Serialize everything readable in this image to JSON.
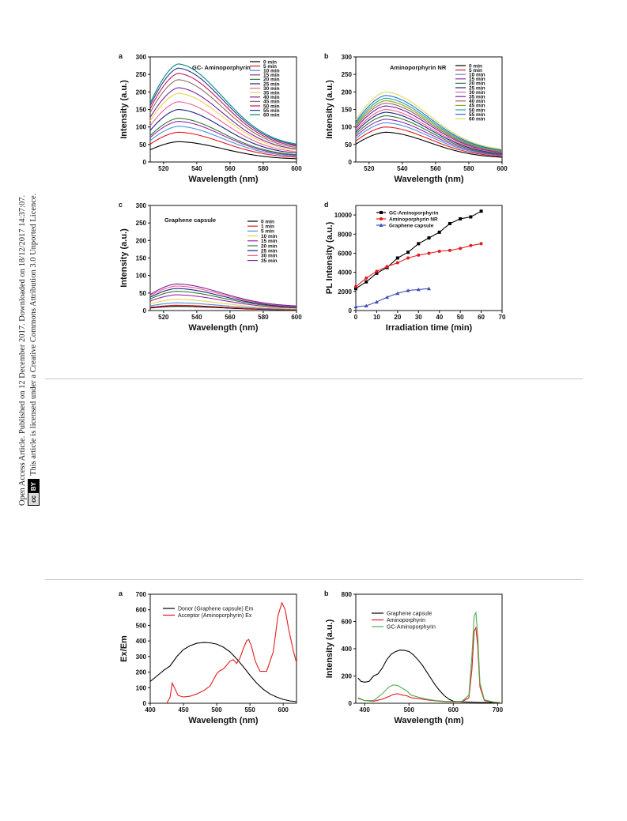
{
  "sidebar": {
    "line1": "Open Access Article. Published on 12 December 2017. Downloaded on 18/12/2017 14:37:07.",
    "line2": "This article is licensed under a Creative Commons Attribution 3.0 Unported Licence.",
    "badge_cc": "cc",
    "badge_by": "BY"
  },
  "chart_data": [
    {
      "panel": "a",
      "type": "line",
      "title": "GC- Aminoporphyrin",
      "xlabel": "Wavelength (nm)",
      "ylabel": "Intensity (a.u.)",
      "xlim": [
        512,
        600
      ],
      "ylim": [
        0,
        300
      ],
      "xticks": [
        520,
        540,
        560,
        580,
        600
      ],
      "yticks": [
        0,
        50,
        100,
        150,
        200,
        250,
        300
      ],
      "legend_position": "top-right",
      "peak_x": 529,
      "series": [
        {
          "name": "0 min",
          "peak": 58,
          "color": "#000000"
        },
        {
          "name": "5 min",
          "peak": 85,
          "color": "#e41a1c"
        },
        {
          "name": "10 min",
          "peak": 102,
          "color": "#4a90d9"
        },
        {
          "name": "15 min",
          "peak": 116,
          "color": "#9c27b0"
        },
        {
          "name": "20 min",
          "peak": 125,
          "color": "#2e7d32"
        },
        {
          "name": "25 min",
          "peak": 150,
          "color": "#1a237e"
        },
        {
          "name": "30 min",
          "peak": 172,
          "color": "#f06292"
        },
        {
          "name": "35 min",
          "peak": 196,
          "color": "#e8d44d"
        },
        {
          "name": "40 min",
          "peak": 212,
          "color": "#7b1fa2"
        },
        {
          "name": "45 min",
          "peak": 235,
          "color": "#8d6e63"
        },
        {
          "name": "50 min",
          "peak": 253,
          "color": "#c2185b"
        },
        {
          "name": "55 min",
          "peak": 268,
          "color": "#283593"
        },
        {
          "name": "60 min",
          "peak": 280,
          "color": "#00897b"
        }
      ]
    },
    {
      "panel": "b",
      "type": "line",
      "title": "Aminoporphyrin NR",
      "xlabel": "Wavelength (nm)",
      "ylabel": "Intensity (a.u.)",
      "xlim": [
        512,
        600
      ],
      "ylim": [
        0,
        300
      ],
      "xticks": [
        520,
        540,
        560,
        580,
        600
      ],
      "yticks": [
        0,
        50,
        100,
        150,
        200,
        250,
        300
      ],
      "legend_position": "top-right",
      "peak_x": 530,
      "series": [
        {
          "name": "0 min",
          "peak": 85,
          "color": "#000000"
        },
        {
          "name": "5 min",
          "peak": 100,
          "color": "#e41a1c"
        },
        {
          "name": "10 min",
          "peak": 112,
          "color": "#4a90d9"
        },
        {
          "name": "15 min",
          "peak": 122,
          "color": "#9c27b0"
        },
        {
          "name": "20 min",
          "peak": 132,
          "color": "#2e7d32"
        },
        {
          "name": "25 min",
          "peak": 142,
          "color": "#1a237e"
        },
        {
          "name": "30 min",
          "peak": 150,
          "color": "#f06292"
        },
        {
          "name": "35 min",
          "peak": 160,
          "color": "#7b1fa2"
        },
        {
          "name": "40 min",
          "peak": 168,
          "color": "#8d6e63"
        },
        {
          "name": "45 min",
          "peak": 175,
          "color": "#9e9d24"
        },
        {
          "name": "50 min",
          "peak": 182,
          "color": "#26a69a"
        },
        {
          "name": "55 min",
          "peak": 190,
          "color": "#1976d2"
        },
        {
          "name": "60 min",
          "peak": 200,
          "color": "#e8d44d"
        }
      ]
    },
    {
      "panel": "c",
      "type": "line",
      "title": "Graphene capsule",
      "xlabel": "Wavelength (nm)",
      "ylabel": "Intensity (a.u.)",
      "xlim": [
        512,
        600
      ],
      "ylim": [
        0,
        300
      ],
      "xticks": [
        520,
        540,
        560,
        580,
        600
      ],
      "yticks": [
        0,
        50,
        100,
        150,
        200,
        250,
        300
      ],
      "legend_position": "top-right",
      "peak_x": 528,
      "series": [
        {
          "name": "0 min",
          "peak": 12,
          "color": "#000000"
        },
        {
          "name": "1 min",
          "peak": 15,
          "color": "#e41a1c"
        },
        {
          "name": "5 min",
          "peak": 22,
          "color": "#4a90d9"
        },
        {
          "name": "10 min",
          "peak": 32,
          "color": "#e8d44d"
        },
        {
          "name": "15 min",
          "peak": 45,
          "color": "#9c27b0"
        },
        {
          "name": "20 min",
          "peak": 55,
          "color": "#2e7d32"
        },
        {
          "name": "25 min",
          "peak": 63,
          "color": "#1a237e"
        },
        {
          "name": "30 min",
          "peak": 70,
          "color": "#f06292"
        },
        {
          "name": "35 min",
          "peak": 76,
          "color": "#7b1fa2"
        }
      ]
    },
    {
      "panel": "d",
      "type": "line",
      "xlabel": "Irradiation time (min)",
      "ylabel": "PL Intensity (a.u.)",
      "xlim": [
        0,
        70
      ],
      "ylim": [
        0,
        11000
      ],
      "xticks": [
        0,
        10,
        20,
        30,
        40,
        50,
        60,
        70
      ],
      "yticks": [
        0,
        2000,
        4000,
        6000,
        8000,
        10000
      ],
      "legend_position": "top-left",
      "series": [
        {
          "name": "GC-Aminoporphyrin",
          "color": "#000000",
          "marker": "square",
          "x": [
            0,
            5,
            10,
            15,
            20,
            25,
            30,
            35,
            40,
            45,
            50,
            55,
            60
          ],
          "y": [
            2300,
            3000,
            3900,
            4500,
            5500,
            6100,
            7000,
            7600,
            8200,
            9100,
            9600,
            9800,
            10400
          ]
        },
        {
          "name": "Aminoporphyrin NR",
          "color": "#e41a1c",
          "marker": "circle",
          "x": [
            0,
            5,
            10,
            15,
            20,
            25,
            30,
            35,
            40,
            45,
            50,
            55,
            60
          ],
          "y": [
            2500,
            3400,
            4100,
            4600,
            5000,
            5500,
            5800,
            6000,
            6200,
            6300,
            6500,
            6800,
            7000
          ]
        },
        {
          "name": "Graphene capsule",
          "color": "#3f51b5",
          "marker": "triangle",
          "x": [
            0,
            5,
            10,
            15,
            20,
            25,
            30,
            35
          ],
          "y": [
            400,
            500,
            900,
            1400,
            1800,
            2100,
            2200,
            2300
          ]
        }
      ]
    },
    {
      "panel": "a",
      "type": "line",
      "xlabel": "Wavelength (nm)",
      "ylabel": "Ex/Em",
      "xlim": [
        400,
        620
      ],
      "ylim": [
        0,
        700
      ],
      "xticks": [
        400,
        450,
        500,
        550,
        600
      ],
      "yticks": [
        0,
        100,
        200,
        300,
        400,
        500,
        600,
        700
      ],
      "legend_position": "top-left",
      "series": [
        {
          "name": "Donor (Graphene capsule) Em",
          "color": "#000000",
          "x": [
            400,
            410,
            420,
            430,
            440,
            450,
            460,
            470,
            480,
            490,
            500,
            510,
            520,
            530,
            540,
            550,
            560,
            570,
            580,
            590,
            600,
            610,
            620
          ],
          "y": [
            140,
            175,
            210,
            240,
            300,
            345,
            370,
            385,
            390,
            388,
            380,
            360,
            330,
            285,
            235,
            180,
            130,
            90,
            60,
            40,
            25,
            15,
            10
          ]
        },
        {
          "name": "Acceptor (Aminoporphyrin) Ex",
          "color": "#e41a1c",
          "x": [
            425,
            430,
            433,
            437,
            442,
            450,
            460,
            470,
            480,
            490,
            500,
            505,
            510,
            520,
            525,
            530,
            535,
            540,
            545,
            548,
            552,
            558,
            565,
            575,
            585,
            592,
            598,
            603,
            608,
            615,
            620
          ],
          "y": [
            0,
            40,
            130,
            95,
            50,
            40,
            45,
            60,
            80,
            110,
            190,
            210,
            220,
            270,
            280,
            255,
            290,
            350,
            400,
            410,
            370,
            270,
            205,
            205,
            330,
            560,
            645,
            600,
            480,
            340,
            260
          ]
        }
      ]
    },
    {
      "panel": "b",
      "type": "line",
      "xlabel": "Wavelength (nm)",
      "ylabel": "Intensity (a.u.)",
      "xlim": [
        380,
        710
      ],
      "ylim": [
        0,
        800
      ],
      "xticks": [
        400,
        500,
        600,
        700
      ],
      "yticks": [
        0,
        200,
        400,
        600,
        800
      ],
      "legend_position": "top-left",
      "series": [
        {
          "name": "Graphene capsule",
          "color": "#000000",
          "x": [
            385,
            392,
            400,
            410,
            420,
            430,
            440,
            450,
            460,
            470,
            480,
            490,
            500,
            510,
            520,
            530,
            540,
            550,
            560,
            570,
            580,
            590,
            600,
            620,
            640,
            660,
            680,
            700
          ],
          "y": [
            185,
            160,
            155,
            160,
            200,
            215,
            260,
            320,
            360,
            380,
            390,
            388,
            380,
            355,
            320,
            280,
            230,
            180,
            130,
            90,
            55,
            30,
            15,
            10,
            8,
            6,
            5,
            5
          ]
        },
        {
          "name": "Aminoporphyrin",
          "color": "#e41a1c",
          "x": [
            385,
            400,
            420,
            440,
            455,
            465,
            475,
            485,
            495,
            505,
            520,
            540,
            560,
            580,
            600,
            620,
            635,
            642,
            647,
            651,
            655,
            660,
            670,
            690,
            705
          ],
          "y": [
            40,
            20,
            15,
            30,
            50,
            65,
            70,
            60,
            55,
            40,
            35,
            25,
            18,
            12,
            10,
            12,
            40,
            250,
            530,
            555,
            420,
            120,
            20,
            8,
            5
          ]
        },
        {
          "name": "GC-Aminoporphyrin",
          "color": "#4caf50",
          "x": [
            385,
            400,
            420,
            440,
            455,
            465,
            475,
            485,
            495,
            505,
            520,
            540,
            560,
            580,
            600,
            620,
            635,
            642,
            647,
            651,
            655,
            660,
            670,
            690,
            705
          ],
          "y": [
            35,
            20,
            20,
            70,
            120,
            135,
            130,
            110,
            90,
            60,
            45,
            30,
            20,
            15,
            12,
            15,
            60,
            350,
            640,
            665,
            500,
            150,
            25,
            10,
            5
          ]
        }
      ]
    }
  ]
}
